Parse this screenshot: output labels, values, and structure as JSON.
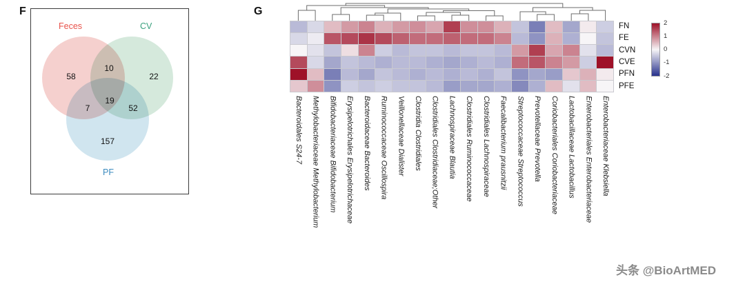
{
  "panels": {
    "f_label": "F",
    "g_label": "G"
  },
  "watermark": {
    "text": "头条 @BioArtMED"
  },
  "chart_data": [
    {
      "type": "venn",
      "sets": [
        {
          "name": "Feces",
          "color": "#e8524a",
          "fill": "#ecaaa5"
        },
        {
          "name": "CV",
          "color": "#3aa17e",
          "fill": "#b2d7c0"
        },
        {
          "name": "PF",
          "color": "#3b8bbf",
          "fill": "#aacfe2"
        }
      ],
      "counts": {
        "feces_only": 58,
        "feces_cv": 10,
        "cv_only": 22,
        "feces_pf": 7,
        "center": 19,
        "cv_pf": 52,
        "pf_only": 157
      }
    },
    {
      "type": "heatmap",
      "dendrogram": "columns-top",
      "legend_position": "right",
      "vmin": -2,
      "vmax": 2,
      "rows": [
        "FN",
        "FE",
        "CVN",
        "CVE",
        "PFN",
        "PFE"
      ],
      "columns": [
        "Bacteroidales S24-7",
        "Methylobacteriaceae Methylobacterium",
        "Bifidobacteriaceae Bifidobacterium",
        "Erysipelotrichales Erysipelotrichaceae",
        "Bacteroidaceae Bacteroides",
        "Ruminococcaceae Oscillospira",
        "Veillonellaceae Dialister",
        "Clostridia Clostridiales",
        "Clostridiales Clostridiaceae;Other",
        "Lachnospiraceae Blautia",
        "Clostridiales Ruminococcaceae",
        "Clostridiales Lachnospiraceae",
        "Faecalibacterium prausnitzii",
        "Streptococcaceae Streptococcus",
        "Prevotellaceae Prevotella",
        "Coriobacteriales Coriobacteriaceae",
        "Lactobacillaceae Lactobacillus",
        "Enterobacteriales Enterobacteriaceae",
        "Enterobacteriaceae Klebsiella"
      ],
      "values": [
        [
          -0.6,
          -0.3,
          0.5,
          0.8,
          1.0,
          0.6,
          0.8,
          0.9,
          0.7,
          1.6,
          0.9,
          0.9,
          0.6,
          -0.5,
          -1.2,
          0.5,
          -0.8,
          0.1,
          -0.4
        ],
        [
          -0.3,
          -0.1,
          1.4,
          1.5,
          1.7,
          1.5,
          1.3,
          1.2,
          1.2,
          1.3,
          1.2,
          1.2,
          1.0,
          -0.6,
          -1.0,
          0.6,
          -0.7,
          0.0,
          -0.5
        ],
        [
          0.0,
          -0.2,
          -0.5,
          0.2,
          1.0,
          -0.4,
          -0.6,
          -0.5,
          -0.5,
          -0.6,
          -0.5,
          -0.5,
          -0.6,
          0.8,
          1.6,
          0.7,
          1.0,
          -0.2,
          -0.6
        ],
        [
          1.5,
          -0.3,
          -0.8,
          -0.5,
          -0.6,
          -0.7,
          -0.6,
          -0.6,
          -0.7,
          -0.8,
          -0.7,
          -0.6,
          -0.7,
          1.2,
          1.4,
          1.0,
          0.8,
          -0.4,
          2.0
        ],
        [
          2.0,
          0.5,
          -1.2,
          -0.6,
          -0.8,
          -0.5,
          -0.6,
          -0.7,
          -0.6,
          -0.7,
          -0.6,
          -0.7,
          -0.5,
          -1.0,
          -0.8,
          -0.9,
          0.4,
          0.6,
          0.1
        ],
        [
          0.4,
          0.9,
          -1.0,
          -0.4,
          -0.5,
          -0.4,
          -0.5,
          -0.5,
          -0.6,
          -0.9,
          -0.8,
          -0.8,
          -0.7,
          -1.1,
          -0.7,
          0.5,
          -0.2,
          0.5,
          0.0
        ]
      ],
      "colorbar": {
        "ticks": [
          2,
          1,
          0,
          -1,
          -2
        ],
        "max_color": "#9e1128",
        "mid_color": "#f7f5f7",
        "min_color": "#27318c"
      }
    }
  ]
}
